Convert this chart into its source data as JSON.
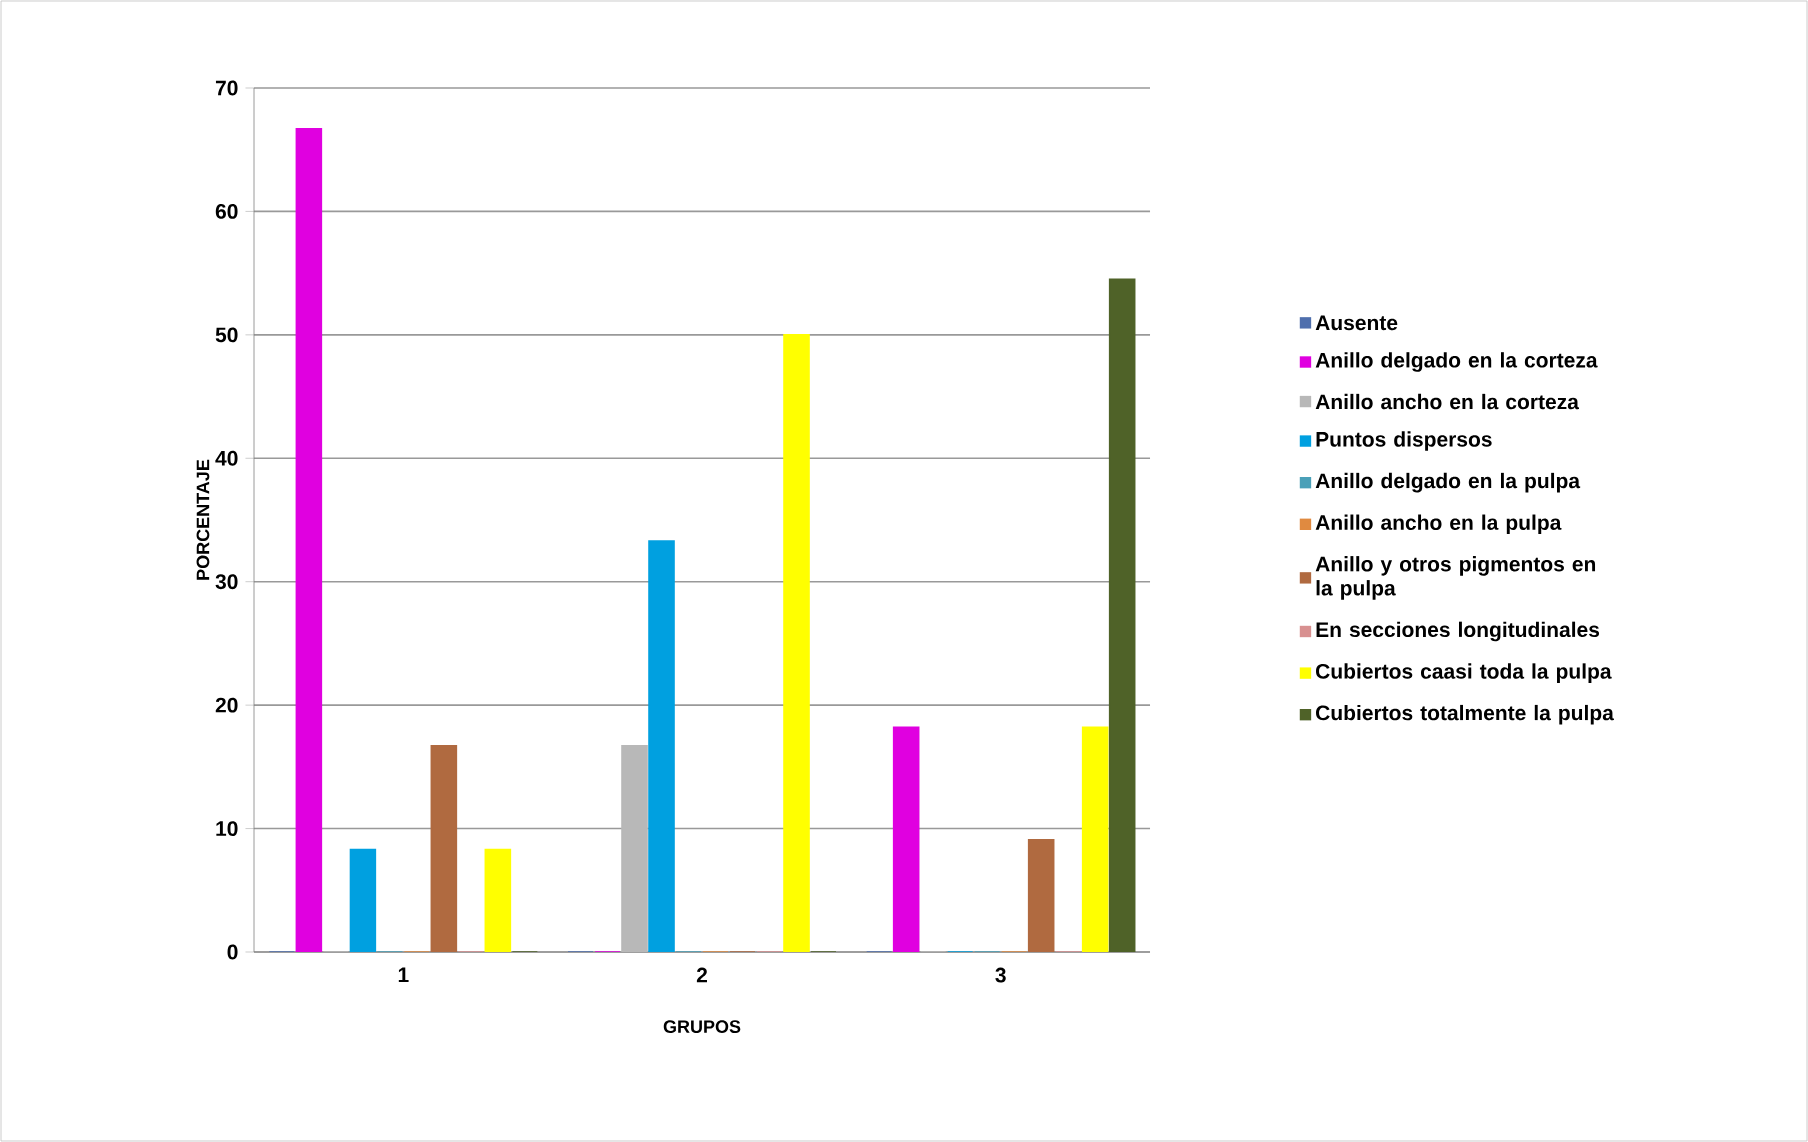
{
  "chart_data": {
    "type": "bar",
    "xlabel": "GRUPOS",
    "ylabel": "PORCENTAJE",
    "categories": [
      "1",
      "2",
      "3"
    ],
    "ylim": [
      0,
      70
    ],
    "yticks": [
      0,
      10,
      20,
      30,
      40,
      50,
      60,
      70
    ],
    "grid": "y",
    "legend": "right",
    "series": [
      {
        "name": "Ausente",
        "color": "#4f6fad",
        "values": [
          0,
          0,
          0
        ]
      },
      {
        "name": "Anillo delgado en la corteza",
        "color": "#e000e0",
        "values": [
          66.7,
          0,
          18.2
        ]
      },
      {
        "name": "Anillo ancho en la corteza",
        "color": "#b8b8b8",
        "values": [
          0,
          16.7,
          0
        ]
      },
      {
        "name": "Puntos dispersos",
        "color": "#00a0e0",
        "values": [
          8.3,
          33.3,
          0
        ]
      },
      {
        "name": "Anillo delgado en la pulpa",
        "color": "#4aa0b8",
        "values": [
          0,
          0,
          0
        ]
      },
      {
        "name": "Anillo ancho en la pulpa",
        "color": "#e08a40",
        "values": [
          0,
          0,
          0
        ]
      },
      {
        "name": "Anillo y otros pigmentos en la pulpa",
        "color": "#b06a40",
        "values": [
          16.7,
          0,
          9.1
        ]
      },
      {
        "name": "En secciones longitudinales",
        "color": "#d89090",
        "values": [
          0,
          0,
          0
        ]
      },
      {
        "name": "Cubiertos caasi toda la pulpa",
        "color": "#ffff00",
        "values": [
          8.3,
          50,
          18.2
        ]
      },
      {
        "name": "Cubiertos totalmente la pulpa",
        "color": "#4f6228",
        "values": [
          0,
          0,
          54.5
        ]
      }
    ]
  }
}
